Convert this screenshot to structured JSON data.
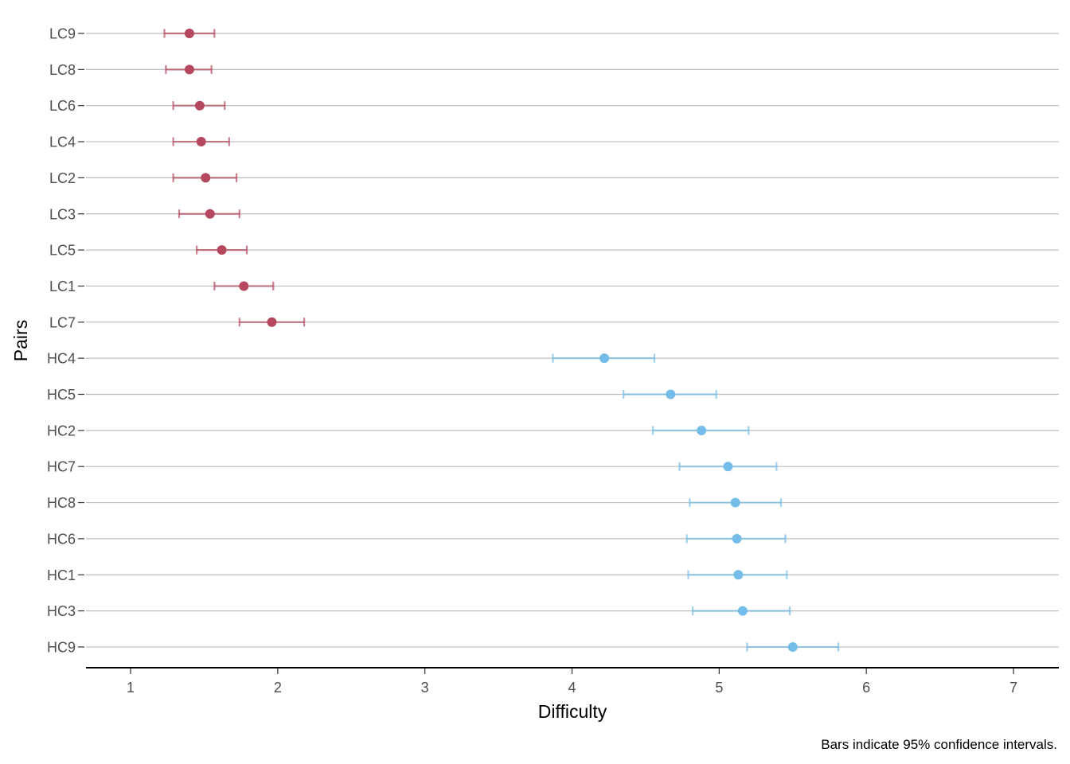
{
  "chart_data": {
    "type": "scatter",
    "orientation": "horizontal-dot-with-error-bars",
    "xlabel": "Difficulty",
    "ylabel": "Pairs",
    "caption": "Bars indicate 95% confidence intervals.",
    "xlim": [
      0.7,
      7.3
    ],
    "xticks": [
      1,
      2,
      3,
      4,
      5,
      6,
      7
    ],
    "grid": "horizontal",
    "legend": "none",
    "colors": {
      "LC": "#b5485e",
      "HC": "#74bde8"
    },
    "pairs": [
      {
        "label": "LC9",
        "group": "LC",
        "value": 1.4,
        "lo": 1.23,
        "hi": 1.57
      },
      {
        "label": "LC8",
        "group": "LC",
        "value": 1.4,
        "lo": 1.24,
        "hi": 1.55
      },
      {
        "label": "LC6",
        "group": "LC",
        "value": 1.47,
        "lo": 1.29,
        "hi": 1.64
      },
      {
        "label": "LC4",
        "group": "LC",
        "value": 1.48,
        "lo": 1.29,
        "hi": 1.67
      },
      {
        "label": "LC2",
        "group": "LC",
        "value": 1.51,
        "lo": 1.29,
        "hi": 1.72
      },
      {
        "label": "LC3",
        "group": "LC",
        "value": 1.54,
        "lo": 1.33,
        "hi": 1.74
      },
      {
        "label": "LC5",
        "group": "LC",
        "value": 1.62,
        "lo": 1.45,
        "hi": 1.79
      },
      {
        "label": "LC1",
        "group": "LC",
        "value": 1.77,
        "lo": 1.57,
        "hi": 1.97
      },
      {
        "label": "LC7",
        "group": "LC",
        "value": 1.96,
        "lo": 1.74,
        "hi": 2.18
      },
      {
        "label": "HC4",
        "group": "HC",
        "value": 4.22,
        "lo": 3.87,
        "hi": 4.56
      },
      {
        "label": "HC5",
        "group": "HC",
        "value": 4.67,
        "lo": 4.35,
        "hi": 4.98
      },
      {
        "label": "HC2",
        "group": "HC",
        "value": 4.88,
        "lo": 4.55,
        "hi": 5.2
      },
      {
        "label": "HC7",
        "group": "HC",
        "value": 5.06,
        "lo": 4.73,
        "hi": 5.39
      },
      {
        "label": "HC8",
        "group": "HC",
        "value": 5.11,
        "lo": 4.8,
        "hi": 5.42
      },
      {
        "label": "HC6",
        "group": "HC",
        "value": 5.12,
        "lo": 4.78,
        "hi": 5.45
      },
      {
        "label": "HC1",
        "group": "HC",
        "value": 5.13,
        "lo": 4.79,
        "hi": 5.46
      },
      {
        "label": "HC3",
        "group": "HC",
        "value": 5.16,
        "lo": 4.82,
        "hi": 5.48
      },
      {
        "label": "HC9",
        "group": "HC",
        "value": 5.5,
        "lo": 5.19,
        "hi": 5.81
      }
    ]
  }
}
